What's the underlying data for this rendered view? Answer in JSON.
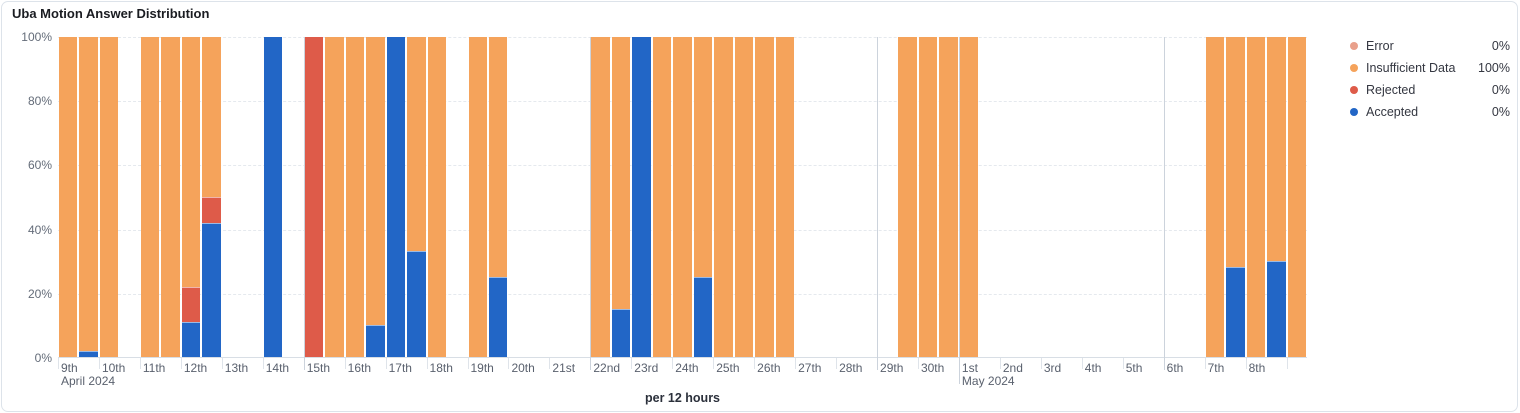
{
  "panel": {
    "title": "Uba Motion Answer Distribution"
  },
  "legend": {
    "items": [
      {
        "label": "Error",
        "value": "0%",
        "color": "#e9a08b"
      },
      {
        "label": "Insufficient Data",
        "value": "100%",
        "color": "#f5a35b"
      },
      {
        "label": "Rejected",
        "value": "0%",
        "color": "#de5b49"
      },
      {
        "label": "Accepted",
        "value": "0%",
        "color": "#2266c6"
      }
    ]
  },
  "chart_data": {
    "type": "bar",
    "stacked": true,
    "title": "Uba Motion Answer Distribution",
    "xlabel": "per 12 hours",
    "ylabel": "",
    "ylim": [
      0,
      100
    ],
    "y_ticks": [
      {
        "pct": 0,
        "label": "0%"
      },
      {
        "pct": 20,
        "label": "20%"
      },
      {
        "pct": 40,
        "label": "40%"
      },
      {
        "pct": 60,
        "label": "60%"
      },
      {
        "pct": 80,
        "label": "80%"
      },
      {
        "pct": 100,
        "label": "100%"
      }
    ],
    "grid": {
      "horizontal": "dashed",
      "vertical_gridline_days": [
        6,
        13,
        20,
        22,
        27
      ],
      "tall_tick_days": [
        22
      ]
    },
    "x_axis": {
      "slots_per_day": 2,
      "total_slots": 61,
      "days": [
        "9th",
        "10th",
        "11th",
        "12th",
        "13th",
        "14th",
        "15th",
        "16th",
        "17th",
        "18th",
        "19th",
        "20th",
        "21st",
        "22nd",
        "23rd",
        "24th",
        "25th",
        "26th",
        "27th",
        "28th",
        "29th",
        "30th",
        "1st",
        "2nd",
        "3rd",
        "4th",
        "5th",
        "6th",
        "7th",
        "8th",
        ""
      ],
      "month_labels": {
        "0": "April 2024",
        "22": "May 2024"
      }
    },
    "series": [
      {
        "key": "accepted",
        "name": "Accepted",
        "color": "#2266c6"
      },
      {
        "key": "rejected",
        "name": "Rejected",
        "color": "#de5b49"
      },
      {
        "key": "error",
        "name": "Error",
        "color": "#e9a08b"
      },
      {
        "key": "insufficient_data",
        "name": "Insufficient Data",
        "color": "#f5a35b"
      }
    ],
    "bars": [
      {
        "slot": 0,
        "insufficient_data": 100
      },
      {
        "slot": 1,
        "accepted": 2,
        "insufficient_data": 98
      },
      {
        "slot": 2,
        "insufficient_data": 100
      },
      {
        "slot": 4,
        "insufficient_data": 100
      },
      {
        "slot": 5,
        "insufficient_data": 100
      },
      {
        "slot": 6,
        "accepted": 11,
        "rejected": 11,
        "insufficient_data": 78
      },
      {
        "slot": 7,
        "accepted": 42,
        "rejected": 8,
        "insufficient_data": 50
      },
      {
        "slot": 10,
        "accepted": 100
      },
      {
        "slot": 12,
        "rejected": 100
      },
      {
        "slot": 13,
        "insufficient_data": 100
      },
      {
        "slot": 14,
        "insufficient_data": 100
      },
      {
        "slot": 15,
        "accepted": 10,
        "insufficient_data": 90
      },
      {
        "slot": 16,
        "accepted": 100
      },
      {
        "slot": 17,
        "accepted": 33,
        "insufficient_data": 67
      },
      {
        "slot": 18,
        "insufficient_data": 100
      },
      {
        "slot": 20,
        "insufficient_data": 100
      },
      {
        "slot": 21,
        "accepted": 25,
        "insufficient_data": 75
      },
      {
        "slot": 26,
        "insufficient_data": 100
      },
      {
        "slot": 27,
        "accepted": 15,
        "insufficient_data": 85
      },
      {
        "slot": 28,
        "accepted": 100
      },
      {
        "slot": 29,
        "insufficient_data": 100
      },
      {
        "slot": 30,
        "insufficient_data": 100
      },
      {
        "slot": 31,
        "accepted": 25,
        "insufficient_data": 75
      },
      {
        "slot": 32,
        "insufficient_data": 100
      },
      {
        "slot": 33,
        "insufficient_data": 100
      },
      {
        "slot": 34,
        "insufficient_data": 100
      },
      {
        "slot": 35,
        "insufficient_data": 100
      },
      {
        "slot": 41,
        "insufficient_data": 100
      },
      {
        "slot": 42,
        "insufficient_data": 100
      },
      {
        "slot": 43,
        "insufficient_data": 100
      },
      {
        "slot": 44,
        "insufficient_data": 100
      },
      {
        "slot": 56,
        "insufficient_data": 100
      },
      {
        "slot": 57,
        "accepted": 28,
        "insufficient_data": 72
      },
      {
        "slot": 58,
        "insufficient_data": 100
      },
      {
        "slot": 59,
        "accepted": 30,
        "insufficient_data": 70
      },
      {
        "slot": 60,
        "insufficient_data": 100
      }
    ]
  }
}
